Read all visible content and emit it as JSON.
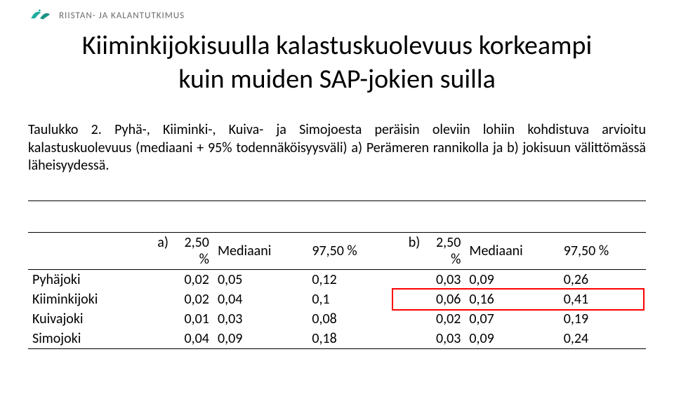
{
  "logo": {
    "text": "RIISTAN- JA KALANTUTKIMUS",
    "swirl_colors": [
      "#1eaea0",
      "#1eaea0"
    ]
  },
  "title_line1": "Kiiminkijokisuulla kalastuskuolevuus korkeampi",
  "title_line2": "kuin muiden SAP-jokien suilla",
  "paragraph": "Taulukko 2. Pyhä-, Kiiminki-, Kuiva- ja Simojoesta peräisin oleviin lohiin kohdistuva arvioitu kalastuskuolevuus (mediaani + 95% todennäköisyysväli) a) Perämeren rannikolla ja b) jokisuun välittömässä läheisyydessä.",
  "table": {
    "header": {
      "a": "a)",
      "a_low": "2,50 %",
      "a_med": "Mediaani",
      "a_high": "97,50 %",
      "b": "b)",
      "b_low": "2,50 %",
      "b_med": "Mediaani",
      "b_high": "97,50 %"
    },
    "rows": [
      {
        "name": "Pyhäjoki",
        "a_low": "0,02",
        "a_med": "0,05",
        "a_high": "0,12",
        "b_low": "0,03",
        "b_med": "0,09",
        "b_high": "0,26"
      },
      {
        "name": "Kiiminkijoki",
        "a_low": "0,02",
        "a_med": "0,04",
        "a_high": "0,1",
        "b_low": "0,06",
        "b_med": "0,16",
        "b_high": "0,41"
      },
      {
        "name": "Kuivajoki",
        "a_low": "0,01",
        "a_med": "0,03",
        "a_high": "0,08",
        "b_low": "0,02",
        "b_med": "0,07",
        "b_high": "0,19"
      },
      {
        "name": "Simojoki",
        "a_low": "0,04",
        "a_med": "0,09",
        "a_high": "0,18",
        "b_low": "0,03",
        "b_med": "0,09",
        "b_high": "0,24"
      }
    ],
    "highlight_row_index": 1,
    "highlight_color": "#ff0000"
  }
}
